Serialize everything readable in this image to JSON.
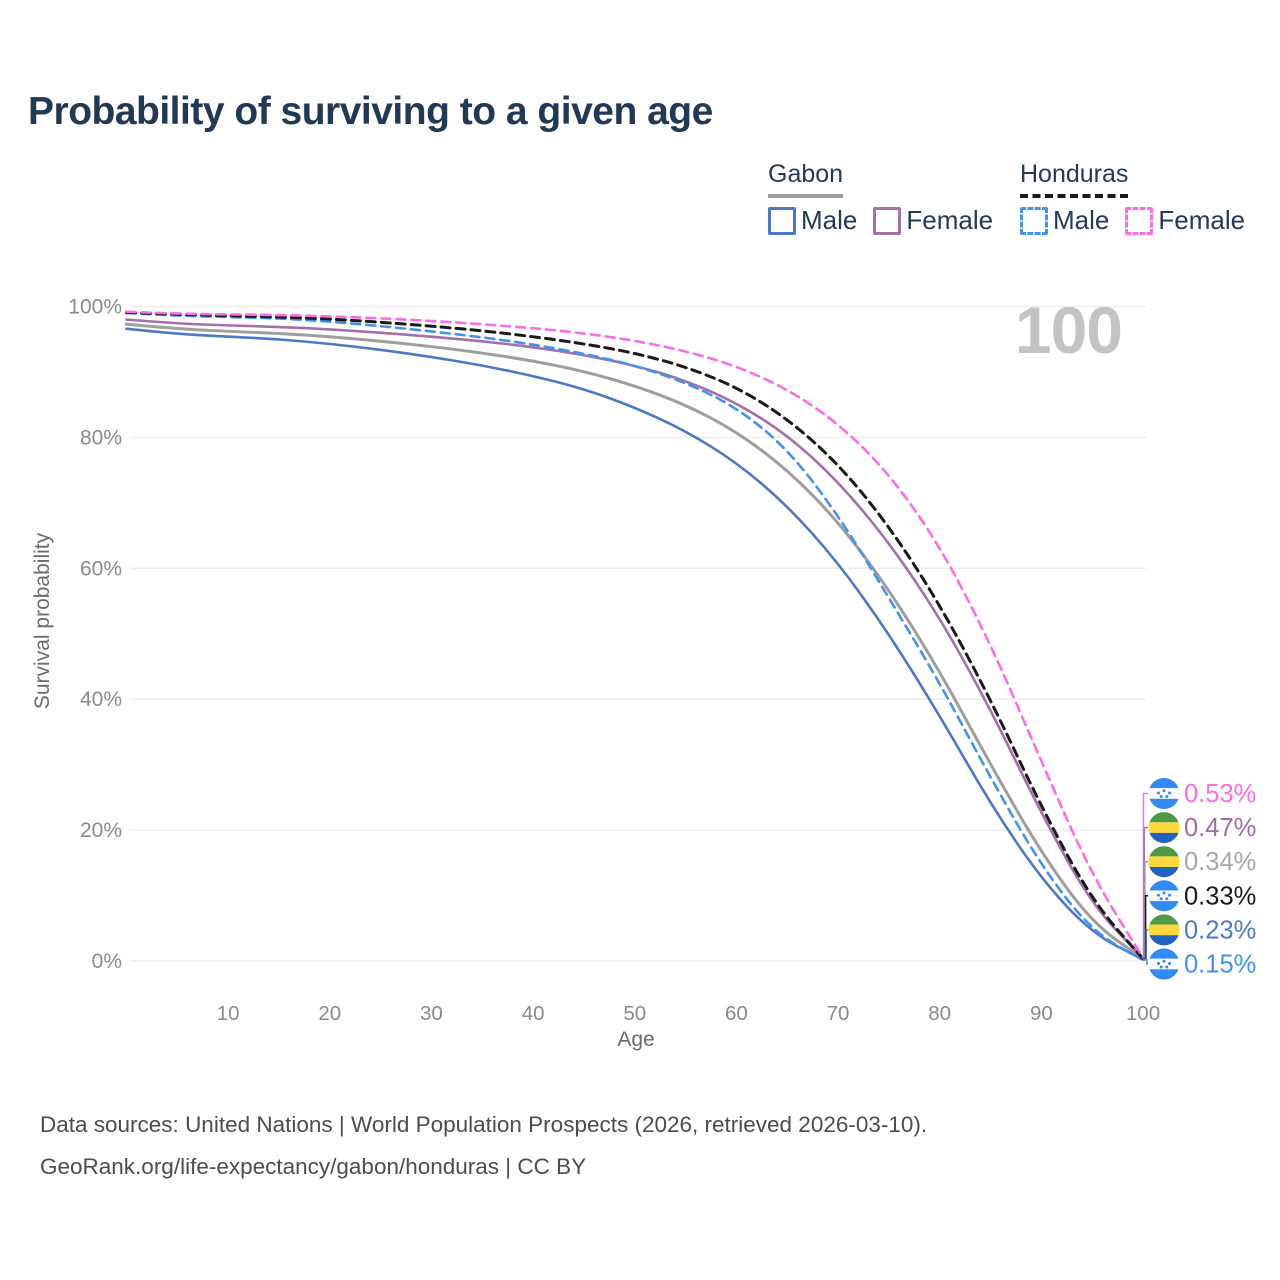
{
  "title": "Probability of surviving to a given age",
  "watermark_age": "100",
  "legend": {
    "gabon": {
      "name": "Gabon",
      "male_label": "Male",
      "female_label": "Female"
    },
    "honduras": {
      "name": "Honduras",
      "male_label": "Male",
      "female_label": "Female"
    }
  },
  "footer": {
    "line1": "Data sources: United Nations | World Population Prospects (2026, retrieved 2026-03-10).",
    "line2": "GeoRank.org/life-expectancy/gabon/honduras | CC BY"
  },
  "colors": {
    "title_text": "#203a56",
    "axis_text": "#6b6b6b",
    "tick_text": "#8a8a8a",
    "gridline": "#ececec",
    "watermark": "#c3c3c3",
    "footer_text": "#4d4d4d",
    "honduras_flag_blue": "#338af3",
    "gabon_flag_green": "#4f9b45",
    "gabon_flag_yellow": "#ffd63c",
    "gabon_flag_blue": "#2162c1"
  },
  "chart_data": {
    "type": "line",
    "title": "Probability of surviving to a given age",
    "xlabel": "Age",
    "ylabel": "Survival probability",
    "xlim": [
      0,
      100
    ],
    "ylim": [
      0,
      100
    ],
    "grid": "horizontal",
    "legend_position": "top-right",
    "x_ticks": [
      10,
      20,
      30,
      40,
      50,
      60,
      70,
      80,
      90,
      100
    ],
    "y_ticks": [
      {
        "value": 0,
        "label": "0%"
      },
      {
        "value": 20,
        "label": "20%"
      },
      {
        "value": 40,
        "label": "40%"
      },
      {
        "value": 60,
        "label": "60%"
      },
      {
        "value": 80,
        "label": "80%"
      },
      {
        "value": 100,
        "label": "100%"
      }
    ],
    "x": [
      0,
      5,
      10,
      15,
      20,
      25,
      30,
      35,
      40,
      45,
      50,
      55,
      60,
      65,
      70,
      75,
      80,
      85,
      90,
      95,
      100
    ],
    "series": [
      {
        "id": "gabon-male",
        "name": "Gabon Male",
        "country": "Gabon",
        "sex": "male",
        "style": "solid",
        "color": "#4b79c6",
        "end_label": "0.23%",
        "values": [
          96.6,
          95.8,
          95.4,
          95.0,
          94.3,
          93.4,
          92.3,
          91.0,
          89.4,
          87.4,
          84.6,
          81.0,
          76.2,
          69.6,
          60.9,
          50.0,
          37.5,
          24.0,
          12.5,
          4.2,
          0.23
        ]
      },
      {
        "id": "gabon-female",
        "name": "Gabon Female",
        "country": "Gabon",
        "sex": "female",
        "style": "solid",
        "color": "#a56fa9",
        "end_label": "0.47%",
        "values": [
          98.0,
          97.4,
          97.1,
          96.9,
          96.5,
          96.0,
          95.4,
          94.7,
          93.8,
          92.6,
          91.0,
          88.7,
          85.3,
          80.4,
          73.3,
          64.0,
          52.5,
          38.5,
          22.5,
          8.5,
          0.47
        ]
      },
      {
        "id": "gabon-total",
        "name": "Gabon (both sexes)",
        "country": "Gabon",
        "sex": "both",
        "style": "solid",
        "color": "#9e9e9e",
        "end_label": "0.34%",
        "values": [
          97.3,
          96.6,
          96.2,
          95.9,
          95.4,
          94.7,
          93.9,
          92.9,
          91.7,
          90.1,
          87.9,
          85.0,
          80.9,
          75.1,
          67.2,
          56.8,
          44.3,
          30.0,
          16.5,
          5.8,
          0.34
        ]
      },
      {
        "id": "honduras-male",
        "name": "Honduras Male",
        "country": "Honduras",
        "sex": "male",
        "style": "dashed",
        "color": "#4193f0",
        "end_label": "0.15%",
        "values": [
          99.0,
          98.6,
          98.4,
          98.2,
          97.7,
          97.0,
          96.2,
          95.3,
          94.2,
          92.8,
          91.0,
          88.4,
          84.6,
          78.3,
          68.2,
          55.5,
          42.5,
          28.0,
          14.5,
          4.5,
          0.15
        ]
      },
      {
        "id": "honduras-female",
        "name": "Honduras Female",
        "country": "Honduras",
        "sex": "female",
        "style": "dashed",
        "color": "#fb6ce5",
        "end_label": "0.53%",
        "values": [
          99.2,
          98.9,
          98.8,
          98.7,
          98.5,
          98.2,
          97.8,
          97.3,
          96.7,
          95.9,
          94.8,
          93.2,
          90.9,
          87.4,
          82.2,
          74.5,
          63.5,
          48.5,
          30.5,
          13.0,
          0.53
        ]
      },
      {
        "id": "honduras-total",
        "name": "Honduras (both sexes)",
        "country": "Honduras",
        "sex": "both",
        "style": "dashed",
        "color": "#1a1a1a",
        "end_label": "0.33%",
        "values": [
          99.1,
          98.8,
          98.6,
          98.4,
          98.1,
          97.6,
          97.0,
          96.3,
          95.4,
          94.3,
          92.9,
          90.8,
          87.7,
          82.9,
          76.0,
          66.5,
          54.5,
          40.0,
          23.5,
          9.2,
          0.33
        ]
      }
    ],
    "end_labels": [
      {
        "text": "0.53%",
        "series": "honduras-female",
        "flag": "honduras",
        "color": "#fb6ce5"
      },
      {
        "text": "0.47%",
        "series": "gabon-female",
        "flag": "gabon",
        "color": "#a16ba5"
      },
      {
        "text": "0.34%",
        "series": "gabon-total",
        "flag": "gabon",
        "color": "#a8a8a8"
      },
      {
        "text": "0.33%",
        "series": "honduras-total",
        "flag": "honduras",
        "color": "#1a1a1a"
      },
      {
        "text": "0.23%",
        "series": "gabon-male",
        "flag": "gabon",
        "color": "#4b79c6"
      },
      {
        "text": "0.15%",
        "series": "honduras-male",
        "flag": "honduras",
        "color": "#4193f0"
      }
    ]
  }
}
